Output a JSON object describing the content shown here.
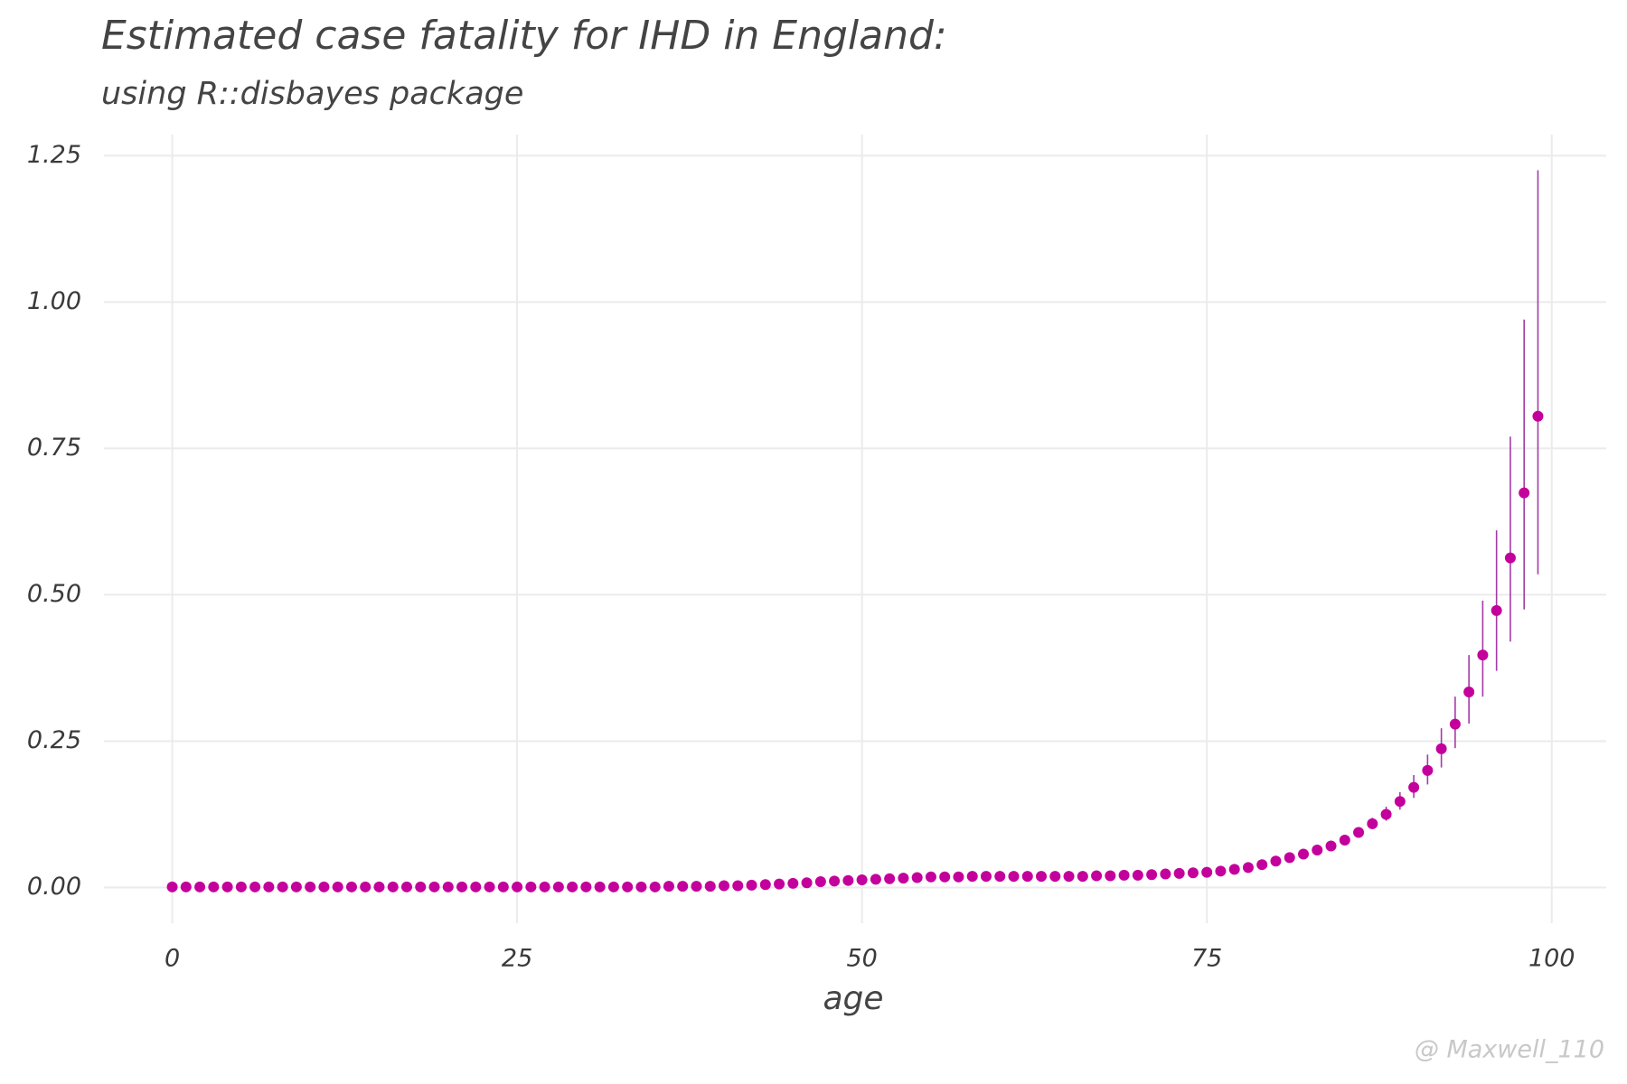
{
  "chart_data": {
    "type": "scatter",
    "title": "Estimated case fatality for IHD in England:",
    "subtitle": "using R::disbayes package",
    "x_label": "age",
    "watermark": "@ Maxwell_110",
    "color": "#c4009c",
    "errorbar_color": "#a43aa8",
    "grid": true,
    "xlim": [
      -4.95,
      103.95
    ],
    "ylim": [
      -0.061,
      1.286
    ],
    "xticks": [
      0,
      25,
      50,
      75,
      100
    ],
    "yticks": [
      {
        "value": 0,
        "label": "0.00"
      },
      0.25,
      {
        "value": 0.5,
        "label": "0.50"
      },
      0.75,
      {
        "value": 1,
        "label": "1.00"
      },
      1.25
    ],
    "x": [
      0,
      1,
      2,
      3,
      4,
      5,
      6,
      7,
      8,
      9,
      10,
      11,
      12,
      13,
      14,
      15,
      16,
      17,
      18,
      19,
      20,
      21,
      22,
      23,
      24,
      25,
      26,
      27,
      28,
      29,
      30,
      31,
      32,
      33,
      34,
      35,
      36,
      37,
      38,
      39,
      40,
      41,
      42,
      43,
      44,
      45,
      46,
      47,
      48,
      49,
      50,
      51,
      52,
      53,
      54,
      55,
      56,
      57,
      58,
      59,
      60,
      61,
      62,
      63,
      64,
      65,
      66,
      67,
      68,
      69,
      70,
      71,
      72,
      73,
      74,
      75,
      76,
      77,
      78,
      79,
      80,
      81,
      82,
      83,
      84,
      85,
      86,
      87,
      88,
      89,
      90,
      91,
      92,
      93,
      94,
      95,
      96,
      97,
      98,
      99
    ],
    "values": [
      0.001,
      0.001,
      0.001,
      0.001,
      0.001,
      0.001,
      0.001,
      0.001,
      0.001,
      0.001,
      0.001,
      0.001,
      0.001,
      0.001,
      0.001,
      0.001,
      0.001,
      0.001,
      0.001,
      0.001,
      0.001,
      0.001,
      0.001,
      0.001,
      0.001,
      0.001,
      0.001,
      0.001,
      0.001,
      0.001,
      0.001,
      0.001,
      0.001,
      0.001,
      0.001,
      0.001,
      0.002,
      0.002,
      0.002,
      0.002,
      0.003,
      0.003,
      0.004,
      0.005,
      0.006,
      0.007,
      0.008,
      0.01,
      0.011,
      0.012,
      0.013,
      0.014,
      0.015,
      0.016,
      0.017,
      0.018,
      0.018,
      0.018,
      0.019,
      0.019,
      0.019,
      0.019,
      0.019,
      0.019,
      0.019,
      0.019,
      0.019,
      0.02,
      0.02,
      0.021,
      0.021,
      0.022,
      0.023,
      0.024,
      0.025,
      0.026,
      0.028,
      0.031,
      0.034,
      0.039,
      0.045,
      0.051,
      0.057,
      0.064,
      0.071,
      0.081,
      0.094,
      0.109,
      0.125,
      0.147,
      0.171,
      0.2,
      0.237,
      0.279,
      0.334,
      0.397,
      0.473,
      0.563,
      0.674,
      0.805
    ],
    "lower": [
      0.001,
      0.001,
      0.001,
      0.001,
      0.001,
      0.001,
      0.001,
      0.001,
      0.001,
      0.001,
      0.001,
      0.001,
      0.001,
      0.001,
      0.001,
      0.001,
      0.001,
      0.001,
      0.001,
      0.001,
      0.001,
      0.001,
      0.001,
      0.001,
      0.001,
      0.001,
      0.001,
      0.001,
      0.001,
      0.001,
      0.001,
      0.001,
      0.001,
      0.001,
      0.001,
      0.001,
      0.002,
      0.002,
      0.002,
      0.002,
      0.003,
      0.003,
      0.004,
      0.005,
      0.006,
      0.007,
      0.008,
      0.01,
      0.011,
      0.012,
      0.013,
      0.014,
      0.015,
      0.016,
      0.017,
      0.018,
      0.018,
      0.018,
      0.019,
      0.019,
      0.019,
      0.019,
      0.019,
      0.019,
      0.019,
      0.019,
      0.019,
      0.02,
      0.02,
      0.021,
      0.021,
      0.022,
      0.023,
      0.024,
      0.025,
      0.026,
      0.028,
      0.031,
      0.034,
      0.039,
      0.045,
      0.051,
      0.057,
      0.064,
      0.071,
      0.076,
      0.087,
      0.1,
      0.114,
      0.133,
      0.153,
      0.176,
      0.205,
      0.238,
      0.28,
      0.326,
      0.37,
      0.42,
      0.475,
      0.535
    ],
    "upper": [
      0.001,
      0.001,
      0.001,
      0.001,
      0.001,
      0.001,
      0.001,
      0.001,
      0.001,
      0.001,
      0.001,
      0.001,
      0.001,
      0.001,
      0.001,
      0.001,
      0.001,
      0.001,
      0.001,
      0.001,
      0.001,
      0.001,
      0.001,
      0.001,
      0.001,
      0.001,
      0.001,
      0.001,
      0.001,
      0.001,
      0.001,
      0.001,
      0.001,
      0.001,
      0.001,
      0.001,
      0.002,
      0.002,
      0.002,
      0.002,
      0.003,
      0.003,
      0.004,
      0.005,
      0.006,
      0.007,
      0.008,
      0.01,
      0.011,
      0.012,
      0.013,
      0.014,
      0.015,
      0.016,
      0.017,
      0.018,
      0.018,
      0.018,
      0.019,
      0.019,
      0.019,
      0.019,
      0.019,
      0.019,
      0.019,
      0.019,
      0.019,
      0.02,
      0.02,
      0.021,
      0.021,
      0.022,
      0.023,
      0.024,
      0.025,
      0.026,
      0.028,
      0.031,
      0.034,
      0.039,
      0.045,
      0.051,
      0.057,
      0.064,
      0.071,
      0.087,
      0.101,
      0.119,
      0.138,
      0.163,
      0.192,
      0.227,
      0.272,
      0.326,
      0.397,
      0.49,
      0.61,
      0.77,
      0.97,
      1.225
    ]
  }
}
